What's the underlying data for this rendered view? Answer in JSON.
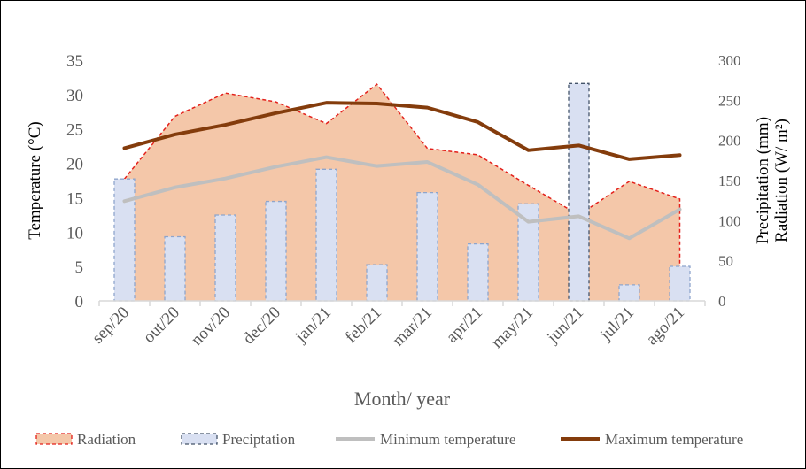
{
  "chart_data": {
    "type": "bar+area+line",
    "categories": [
      "sep/20",
      "out/20",
      "nov/20",
      "dec/20",
      "jan/21",
      "feb/21",
      "mar/21",
      "apr/21",
      "may/21",
      "jun/21",
      "jul/21",
      "ago/21"
    ],
    "xlabel": "Month/ year",
    "ylabel_left": "Temperature (°C)",
    "ylabel_right_line1": "Precipitation (mm)",
    "ylabel_right_line2": "Radiation (W/ m²)",
    "ylim_left": [
      0,
      35
    ],
    "yticks_left": [
      "0",
      "5",
      "10",
      "15",
      "20",
      "25",
      "30",
      "35"
    ],
    "ylim_right": [
      0,
      300
    ],
    "yticks_right": [
      "0",
      "50",
      "100",
      "150",
      "200",
      "250",
      "300"
    ],
    "grid": false,
    "legend_position": "bottom",
    "series": [
      {
        "name": "Radiation",
        "type": "area",
        "axis": "right",
        "color": "#F4C7A9",
        "edge": "#E3201B",
        "values": [
          152,
          230,
          259,
          248,
          221,
          270,
          190,
          182,
          144,
          107,
          149,
          127
        ]
      },
      {
        "name": "Preciptation",
        "type": "bar",
        "axis": "right",
        "color": "#D9E0F2",
        "edge": "#8EA5CC",
        "values": [
          152,
          80,
          107,
          124,
          164,
          45,
          135,
          71,
          121,
          271,
          20,
          43
        ]
      },
      {
        "name": "Minimum temperature",
        "type": "line",
        "axis": "left",
        "color": "#BFBFBF",
        "values": [
          14.5,
          16.5,
          17.8,
          19.5,
          20.9,
          19.6,
          20.2,
          16.9,
          11.5,
          12.3,
          9.1,
          13.3
        ]
      },
      {
        "name": "Maximum temperature",
        "type": "line",
        "axis": "left",
        "color": "#843C0C",
        "values": [
          22.2,
          24.2,
          25.6,
          27.3,
          28.8,
          28.7,
          28.1,
          26.0,
          21.9,
          22.6,
          20.6,
          21.2
        ]
      }
    ]
  }
}
